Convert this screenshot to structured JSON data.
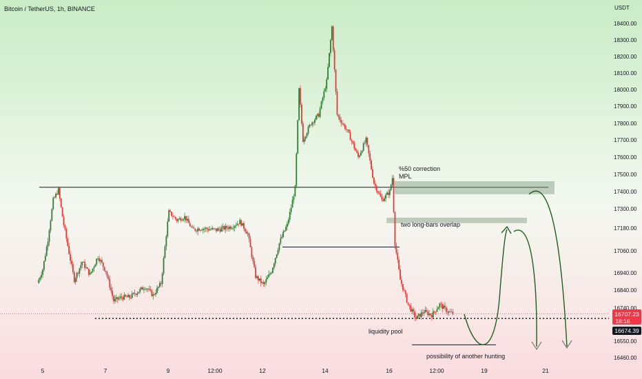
{
  "header": {
    "title": "Bitcoin / TetherUS, 1h, BINANCE"
  },
  "price_axis": {
    "unit": "USDT",
    "ticks": [
      "18400.00",
      "18300.00",
      "18200.00",
      "18100.00",
      "18000.00",
      "17900.00",
      "17800.00",
      "17700.00",
      "17600.00",
      "17500.00",
      "17400.00",
      "17300.00",
      "17180.00",
      "17060.00",
      "16940.00",
      "16840.00",
      "16740.00",
      "16550.00",
      "16460.00"
    ],
    "last_price_label": "16707.23",
    "countdown_label": "18:16",
    "reference_price_label": "16674.39",
    "colors": {
      "last_price": "#f23645",
      "reference_price": "#131722"
    }
  },
  "time_axis": {
    "ticks": [
      "5",
      "7",
      "9",
      "12:00",
      "12",
      "14",
      "16",
      "12:00",
      "19",
      "21"
    ]
  },
  "annotations": {
    "correction": "%50 correction",
    "mpl": "MPL",
    "overlap": "two long-bars overlap",
    "liquidity": "liquidity pool",
    "hunting": "possibility of another hunting"
  },
  "colors": {
    "bg_top": "#c9ecc6",
    "bg_bottom": "#fbdcdf",
    "up": "#2e7d32",
    "down": "#e53935",
    "zone": "#7e9a7e",
    "projection": "#1b5e20",
    "line": "#131722"
  },
  "chart_data": {
    "type": "candlestick",
    "title": "Bitcoin / TetherUS, 1h, BINANCE",
    "y_unit": "USDT",
    "x_ticks": [
      "5",
      "7",
      "9",
      "12:00",
      "12",
      "14",
      "16",
      "12:00",
      "19",
      "21"
    ],
    "price_path": [
      [
        "4 20:00",
        16880
      ],
      [
        "5 00:00",
        16960
      ],
      [
        "5 04:00",
        17120
      ],
      [
        "5 08:00",
        17350
      ],
      [
        "5 12:00",
        17410
      ],
      [
        "5 16:00",
        17200
      ],
      [
        "5 20:00",
        17050
      ],
      [
        "6 00:00",
        16900
      ],
      [
        "6 06:00",
        17000
      ],
      [
        "6 12:00",
        16930
      ],
      [
        "6 18:00",
        17030
      ],
      [
        "7 00:00",
        16950
      ],
      [
        "7 06:00",
        16780
      ],
      [
        "7 12:00",
        16800
      ],
      [
        "7 18:00",
        16800
      ],
      [
        "8 00:00",
        16830
      ],
      [
        "8 06:00",
        16860
      ],
      [
        "8 12:00",
        16810
      ],
      [
        "8 18:00",
        16880
      ],
      [
        "9 00:00",
        17280
      ],
      [
        "9 06:00",
        17230
      ],
      [
        "9 12:00",
        17250
      ],
      [
        "9 18:00",
        17170
      ],
      [
        "10 00:00",
        17180
      ],
      [
        "10 12:00",
        17170
      ],
      [
        "11 00:00",
        17190
      ],
      [
        "11 06:00",
        17220
      ],
      [
        "11 12:00",
        17150
      ],
      [
        "11 18:00",
        16920
      ],
      [
        "12 00:00",
        16870
      ],
      [
        "12 06:00",
        16950
      ],
      [
        "12 12:00",
        17100
      ],
      [
        "12 18:00",
        17200
      ],
      [
        "13 00:00",
        17420
      ],
      [
        "13 03:00",
        18000
      ],
      [
        "13 06:00",
        17700
      ],
      [
        "13 12:00",
        17800
      ],
      [
        "13 18:00",
        17850
      ],
      [
        "14 00:00",
        18050
      ],
      [
        "14 04:00",
        18380
      ],
      [
        "14 08:00",
        17850
      ],
      [
        "14 16:00",
        17750
      ],
      [
        "15 00:00",
        17600
      ],
      [
        "15 06:00",
        17700
      ],
      [
        "15 12:00",
        17450
      ],
      [
        "15 18:00",
        17350
      ],
      [
        "16 00:00",
        17400
      ],
      [
        "16 02:00",
        17480
      ],
      [
        "16 04:00",
        17100
      ],
      [
        "16 08:00",
        16900
      ],
      [
        "16 14:00",
        16760
      ],
      [
        "16 20:00",
        16680
      ],
      [
        "17 02:00",
        16720
      ],
      [
        "17 08:00",
        16700
      ],
      [
        "17 14:00",
        16760
      ],
      [
        "17 20:00",
        16720
      ],
      [
        "18 00:00",
        16707.23
      ]
    ],
    "last_price": 16707.23,
    "reference_price": 16674.39,
    "levels": [
      {
        "name": "resistance",
        "price": 17425
      },
      {
        "name": "support",
        "price": 17080
      },
      {
        "name": "liquidity-pool",
        "price": 16680
      },
      {
        "name": "low",
        "price": 16530
      }
    ],
    "zones": [
      {
        "label": "%50 correction / MPL",
        "from": 17385,
        "to": 17460
      },
      {
        "label": "two long-bars overlap",
        "from": 17215,
        "to": 17245
      }
    ]
  }
}
